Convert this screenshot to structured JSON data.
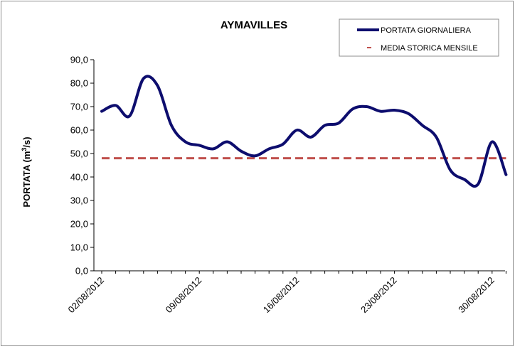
{
  "chart_data": {
    "type": "line",
    "title": "AYMAVILLES",
    "xlabel": "",
    "ylabel_main": "PORTATA (m",
    "ylabel_sup": "3",
    "ylabel_end": "/s)",
    "ylim": [
      0,
      90
    ],
    "ytick_labels": [
      "0,0",
      "10,0",
      "20,0",
      "30,0",
      "40,0",
      "50,0",
      "60,0",
      "70,0",
      "80,0",
      "90,0"
    ],
    "xtick_labels": [
      "02/08/2012",
      "09/08/2012",
      "16/08/2012",
      "23/08/2012",
      "30/08/2012"
    ],
    "x": [
      "02/08/2012",
      "03/08/2012",
      "04/08/2012",
      "05/08/2012",
      "06/08/2012",
      "07/08/2012",
      "08/08/2012",
      "09/08/2012",
      "10/08/2012",
      "11/08/2012",
      "12/08/2012",
      "13/08/2012",
      "14/08/2012",
      "15/08/2012",
      "16/08/2012",
      "17/08/2012",
      "18/08/2012",
      "19/08/2012",
      "20/08/2012",
      "21/08/2012",
      "22/08/2012",
      "23/08/2012",
      "24/08/2012",
      "25/08/2012",
      "26/08/2012",
      "27/08/2012",
      "28/08/2012",
      "29/08/2012",
      "30/08/2012",
      "31/08/2012"
    ],
    "series": [
      {
        "name": "PORTATA GIORNALIERA",
        "color": "#0d0d6e",
        "style": "solid",
        "values": [
          68,
          70.5,
          66,
          82,
          79,
          62,
          55,
          53.5,
          52,
          55,
          51,
          49,
          52,
          54,
          60,
          57,
          62,
          63,
          69,
          70,
          68,
          68.5,
          67,
          62,
          57,
          43,
          39,
          37,
          55,
          41
        ]
      },
      {
        "name": "MEDIA STORICA MENSILE",
        "color": "#c0504d",
        "style": "dashed",
        "values": [
          48,
          48,
          48,
          48,
          48,
          48,
          48,
          48,
          48,
          48,
          48,
          48,
          48,
          48,
          48,
          48,
          48,
          48,
          48,
          48,
          48,
          48,
          48,
          48,
          48,
          48,
          48,
          48,
          48,
          48
        ]
      }
    ],
    "legend": "top-right",
    "grid": false
  }
}
